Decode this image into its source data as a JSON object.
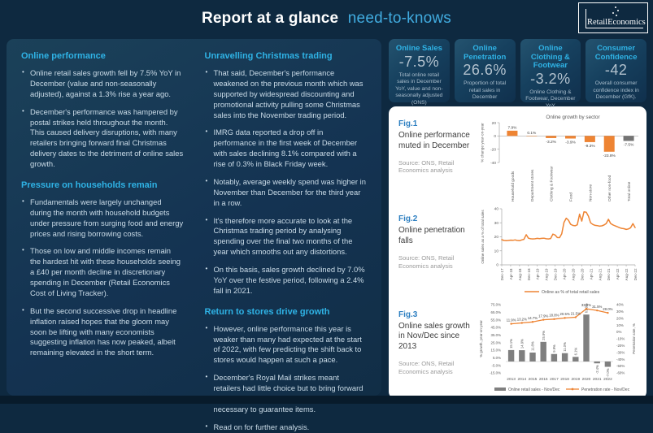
{
  "header": {
    "title_bold": "Report at a glance",
    "title_light": "need-to-knows",
    "logo": "RetailEconomics"
  },
  "colors": {
    "background": "#0E2940",
    "panel_navy": "#143352",
    "accent_cyan": "#2FB3E6",
    "chart_orange": "#EE8433",
    "chart_gray": "#7F7F7F",
    "fig_label_blue": "#2D7FC1"
  },
  "left_panel": {
    "col1": {
      "sections": [
        {
          "heading": "Online performance",
          "bullets": [
            "Online retail sales growth fell by 7.5% YoY in December (value and non-seasonally adjusted), against a 1.3% rise a year ago.",
            "December's performance was hampered by postal strikes held throughout the month. This caused delivery disruptions, with many retailers bringing forward final Christmas delivery dates to the detriment of online sales growth."
          ]
        },
        {
          "heading": "Pressure on households remain",
          "bullets": [
            "Fundamentals were largely unchanged during the month with household budgets under pressure from surging food and energy prices and rising borrowing costs.",
            "Those on low and middle incomes remain the hardest hit with these households seeing a £40 per month decline in discretionary spending in December (Retail Economics Cost of Living Tracker).",
            "But the second successive drop in headline inflation raised hopes that the gloom may soon be lifting with many economists suggesting  inflation has now peaked, albeit remaining elevated in the short term."
          ]
        }
      ]
    },
    "col2": {
      "sections": [
        {
          "heading": "Unravelling Christmas trading",
          "bullets": [
            "That said, December's performance weakened on the previous month which was supported by widespread discounting and promotional activity pulling some Christmas sales into the November trading period.",
            "IMRG data reported a drop off in performance in the first week of December with sales declining 8.1% compared with a rise of 0.3% in Black Friday week.",
            "Notably, average weekly spend was higher in November than December for the third year in a row.",
            "It's therefore more accurate to look at the Christmas trading period by analysing spending over the final two months of the year which smooths out any distortions.",
            "On this basis, sales growth declined by 7.0% YoY over the festive period, following a 2.4% fall in 2021."
          ]
        },
        {
          "heading": "Return to stores drive growth",
          "bullets": [
            "However, online performance this year is weaker than many had expected at the start of 2022, with few predicting the shift back to stores would happen at such a pace.",
            "December's Royal Mail strikes meant retailers had little choice but to bring forward final delivery dates with shopping in-store necessary to guarantee items.",
            "Read on for further analysis."
          ]
        }
      ]
    }
  },
  "kpis": [
    {
      "title": "Online Sales",
      "value": "-7.5%",
      "desc": "Total online retail sales in December YoY, value and non-seasonally adjusted (ONS)"
    },
    {
      "title": "Online Penetration",
      "value": "26.6%",
      "desc": "Proportion of total retail sales in December"
    },
    {
      "title": "Online Clothing & Footwear",
      "value": "-3.2%",
      "desc": "Online Clothing & Footwear, December YoY"
    },
    {
      "title": "Consumer Confidence",
      "value": "-42",
      "desc": "Overall consumer confidence index in December (GfK)."
    }
  ],
  "figures": [
    {
      "label": "Fig.1",
      "title": "Online performance muted in December",
      "source": "Source: ONS, Retail Economics analysis"
    },
    {
      "label": "Fig.2",
      "title": "Online penetration falls",
      "source": "Source: ONS, Retail Economics analysis"
    },
    {
      "label": "Fig.3",
      "title": "Online sales growth in Nov/Dec since 2013",
      "source": "Source: ONS, Retail Economics analysis"
    }
  ],
  "chart_data": [
    {
      "type": "bar",
      "title": "Online growth by sector",
      "ylabel": "% change year-on-year",
      "ylim": [
        -40,
        20
      ],
      "yticks": [
        20,
        0,
        -20,
        -40
      ],
      "categories": [
        "Household goods",
        "Department stores",
        "Clothing & Footwear",
        "Food",
        "Non-store",
        "Other non-food",
        "Total online"
      ],
      "values": [
        7.9,
        0.1,
        -3.2,
        -3.9,
        -9.3,
        -23.8,
        -7.5
      ],
      "labels": [
        "7.9%",
        "0.1%",
        "-3.2%",
        "-3.9%",
        "-9.3%",
        "-23.8%",
        "-7.5%"
      ],
      "bar_color": "#EE8433",
      "highlight_color": "#737373",
      "highlight_index": 6,
      "grid": false
    },
    {
      "type": "line",
      "ylabel": "Online sales as a % of total sales",
      "ylim": [
        0,
        40
      ],
      "yticks": [
        40,
        30,
        20,
        10,
        0
      ],
      "tick_every": 4,
      "xticklabels": [
        "Dec-17",
        "Apr-18",
        "Aug-18",
        "Dec-18",
        "Apr-19",
        "Aug-19",
        "Dec-19",
        "Apr-20",
        "Aug-20",
        "Dec-20",
        "Apr-21",
        "Aug-21",
        "Dec-21",
        "Apr-22",
        "Aug-22",
        "Dec-22"
      ],
      "legend": "Online as % of total retail sales",
      "legend_position": "bottom",
      "line_color": "#EE8433",
      "values": [
        18.0,
        17.4,
        17.2,
        17.4,
        17.6,
        17.5,
        17.8,
        17.4,
        17.2,
        17.8,
        18.2,
        21.5,
        19.0,
        18.6,
        18.5,
        18.6,
        18.9,
        18.7,
        18.9,
        19.0,
        18.6,
        18.5,
        18.8,
        21.9,
        21.3,
        19.5,
        19.4,
        22.2,
        30.2,
        33.3,
        31.9,
        28.9,
        28.1,
        27.9,
        28.6,
        36.2,
        31.2,
        37.8,
        37.5,
        34.7,
        30.0,
        28.8,
        28.2,
        28.0,
        27.6,
        27.8,
        28.4,
        29.5,
        32.5,
        29.5,
        28.5,
        27.8,
        27.2,
        26.5,
        26.0,
        25.8,
        25.3,
        25.6,
        26.5,
        29.4,
        26.6
      ],
      "grid": false
    },
    {
      "type": "combo",
      "categories": [
        "2013",
        "2014",
        "2015",
        "2016",
        "2017",
        "2018",
        "2019",
        "2020",
        "2021",
        "2022"
      ],
      "left_ylabel": "% growth, year-on-year",
      "right_ylabel": "Penetration rate, %",
      "left_ylim": [
        -15,
        75
      ],
      "left_yticks": [
        "75.0%",
        "65.0%",
        "55.0%",
        "45.0%",
        "35.0%",
        "25.0%",
        "15.0%",
        "5.0%",
        "-5.0%",
        "-15.0%"
      ],
      "right_ylim": [
        -60,
        40
      ],
      "right_yticks": [
        "40%",
        "30%",
        "20%",
        "10%",
        "0%",
        "-10%",
        "-20%",
        "-30%",
        "-40%",
        "-50%",
        "-60%"
      ],
      "legend_position": "bottom",
      "series": [
        {
          "name": "Online retail sales - Nov/Dec",
          "type": "bar",
          "axis": "left",
          "color": "#7F7F7F",
          "values": [
            15.1,
            14.9,
            11.8,
            25.9,
            9.9,
            11.0,
            6.1,
            61.9,
            -2.4,
            -7.0
          ],
          "labels": [
            "15.1%",
            "14.9%",
            "11.8%",
            "25.9%",
            "9.9%",
            "11.0%",
            "6.1%",
            "61.9%",
            "-2.4%",
            "-7.0%"
          ]
        },
        {
          "name": "Penetration rate - Nov/Dec",
          "type": "line",
          "axis": "right",
          "color": "#EE8433",
          "values": [
            11.9,
            13.2,
            14.7,
            17.9,
            18.8,
            20.5,
            21.5,
            33.9,
            31.5,
            28.0
          ],
          "labels": [
            "11.9%",
            "13.2%",
            "14.7%",
            "17.9%",
            "18.8%",
            "20.5%",
            "21.5%",
            "33.9%",
            "31.5%",
            "28.0%"
          ]
        }
      ]
    }
  ]
}
